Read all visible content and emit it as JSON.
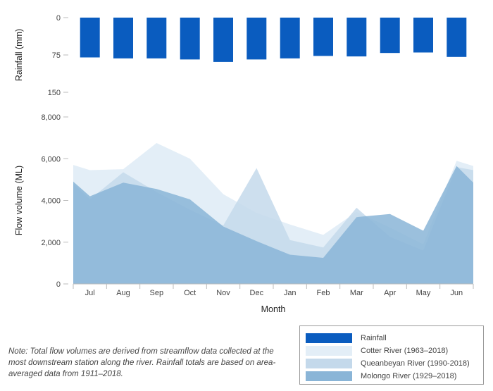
{
  "chart_data": {
    "type": "area",
    "xlabel": "Month",
    "categories": [
      "Jul",
      "Aug",
      "Sep",
      "Oct",
      "Nov",
      "Dec",
      "Jan",
      "Feb",
      "Mar",
      "Apr",
      "May",
      "Jun"
    ],
    "rainfall": {
      "name": "Rainfall",
      "ylabel": "Rainfall (mm)",
      "ylim": [
        0,
        150
      ],
      "ticks": [
        "0",
        "75",
        "150"
      ],
      "values": [
        80,
        82,
        82,
        84,
        89,
        84,
        82,
        77,
        78,
        71,
        70,
        79
      ],
      "color": "#0a5cbf"
    },
    "flow": {
      "ylabel": "Flow volume (ML)",
      "ylim": [
        0,
        8000
      ],
      "ticks": [
        "0",
        "2,000",
        "4,000",
        "6,000",
        "8,000"
      ],
      "series": [
        {
          "name": "Cotter River (1963–2018)",
          "x": [
            0,
            0.5,
            1.5,
            2.5,
            3.5,
            4.5,
            5.5,
            6.5,
            7.5,
            8.5,
            9.5,
            10.5,
            11.5,
            12
          ],
          "values": [
            5700,
            5450,
            5500,
            6750,
            6000,
            4300,
            3400,
            2850,
            2350,
            3450,
            2700,
            1900,
            5900,
            5650
          ],
          "color": "#e3eef7"
        },
        {
          "name": "Queanbeyan River (1990-2018)",
          "x": [
            0,
            0.5,
            1.5,
            2.5,
            3.5,
            4.5,
            5.5,
            6.5,
            7.5,
            8.5,
            9.5,
            10.5,
            11.5,
            12
          ],
          "values": [
            4800,
            4050,
            5350,
            4400,
            3550,
            2800,
            5550,
            2100,
            1750,
            3650,
            2250,
            1600,
            5600,
            5450
          ],
          "color": "#c4d9eb"
        },
        {
          "name": "Molongo River (1929–2018)",
          "x": [
            0,
            0.5,
            1.5,
            2.5,
            3.5,
            4.5,
            5.5,
            6.5,
            7.5,
            8.5,
            9.5,
            10.5,
            11.5,
            12
          ],
          "values": [
            4900,
            4200,
            4850,
            4550,
            4050,
            2750,
            2050,
            1400,
            1250,
            3200,
            3350,
            2550,
            5650,
            4850
          ],
          "color": "#8ab5d7"
        }
      ]
    },
    "legend": {
      "position": "bottom-right"
    },
    "grid": false
  },
  "note": "Note: Total flow volumes are derived from streamflow data collected at the most downstream station along the river. Rainfall totals are based on area-averaged data from 1911–2018."
}
